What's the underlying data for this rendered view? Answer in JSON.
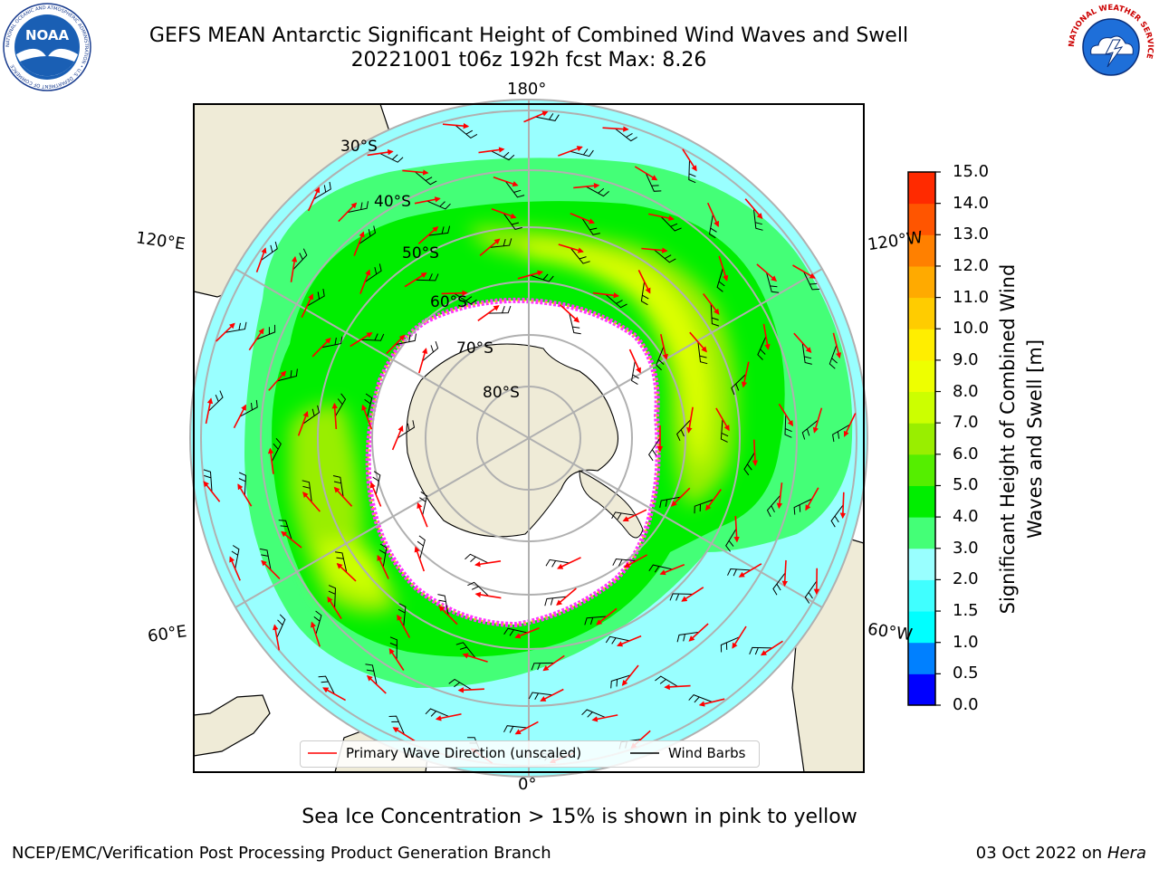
{
  "header": {
    "title_line1": "GEFS MEAN Antarctic Significant Height of Combined Wind Waves and Swell",
    "title_line2": "20221001 t06z 192h fcst   Max: 8.26"
  },
  "logos": {
    "noaa_text": "NOAA",
    "noaa_ring": "NATIONAL OCEANIC AND ATMOSPHERIC ADMINISTRATION • U.S. DEPARTMENT OF COMMERCE",
    "nws_ring": "NATIONAL WEATHER SERVICE"
  },
  "map": {
    "projection": "south-polar-stereographic",
    "lon_labels": {
      "top": "180°",
      "bottom": "0°",
      "upper_left": "120°E",
      "lower_left": "60°E",
      "upper_right": "120°W",
      "lower_right": "60°W"
    },
    "lat_labels": [
      "30°S",
      "40°S",
      "50°S",
      "60°S",
      "70°S",
      "80°S"
    ],
    "colors": {
      "land": "#efebd7",
      "coastline": "#000000",
      "grid": "#b0b0b0",
      "ice_edge": "#ff33ff",
      "wave_arrow": "#ff0000",
      "wind_barb": "#000000"
    }
  },
  "legend": {
    "wave_label": "Primary Wave Direction (unscaled)",
    "wind_label": "Wind Barbs"
  },
  "colorbar": {
    "title": "Significant Height of Combined Wind Waves and Swell [m]",
    "ticks": [
      "0.0",
      "0.5",
      "1.0",
      "1.5",
      "2.0",
      "3.0",
      "4.0",
      "5.0",
      "6.0",
      "7.0",
      "8.0",
      "9.0",
      "10.0",
      "11.0",
      "12.0",
      "13.0",
      "14.0",
      "15.0"
    ],
    "colors": [
      "#0000ff",
      "#0080ff",
      "#00ffff",
      "#40ffff",
      "#99ffff",
      "#44ff77",
      "#00ee00",
      "#55ee00",
      "#99ee00",
      "#ccff00",
      "#eeff00",
      "#ffee00",
      "#ffcc00",
      "#ffaa00",
      "#ff8000",
      "#ff5500",
      "#ff2a00",
      "#ff0000"
    ]
  },
  "footnote": "Sea Ice Concentration > 15% is shown in pink to yellow",
  "credit": "NCEP/EMC/Verification Post Processing Product Generation Branch",
  "date": {
    "text": "03 Oct 2022 on ",
    "host": "Hera"
  }
}
